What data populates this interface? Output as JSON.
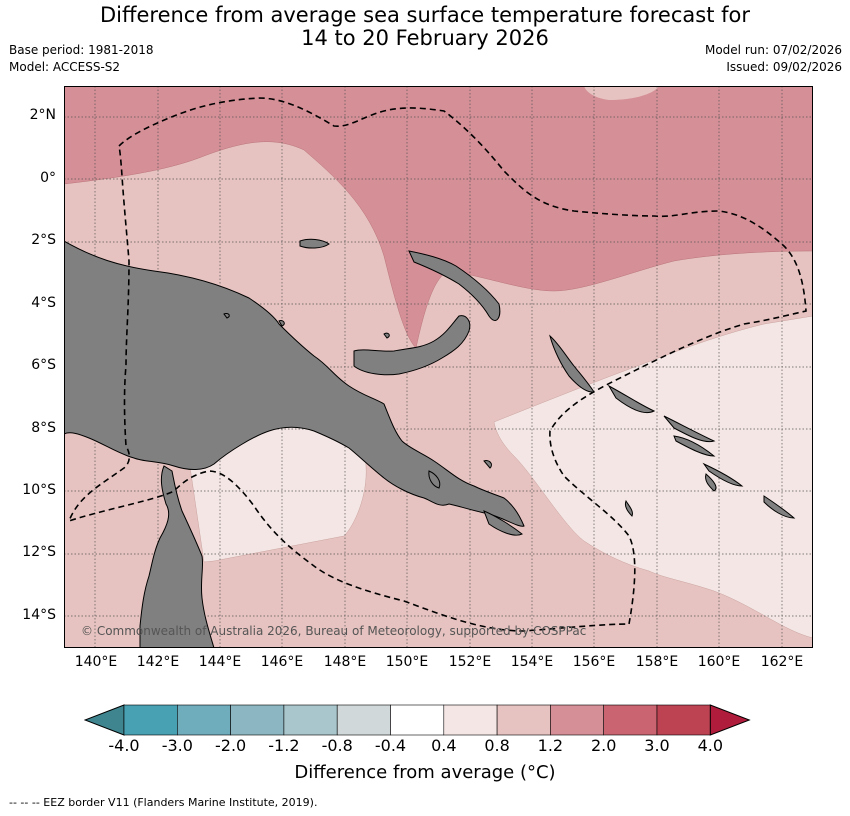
{
  "title": {
    "line1": "Difference from average sea surface temperature forecast for",
    "line2": "14 to 20 February 2026"
  },
  "meta": {
    "base_period": "Base period: 1981-2018",
    "model": "Model: ACCESS-S2",
    "model_run": "Model run: 07/02/2026",
    "issued": "Issued: 09/02/2026"
  },
  "map": {
    "lon_labels": [
      "140°E",
      "142°E",
      "144°E",
      "146°E",
      "148°E",
      "150°E",
      "152°E",
      "154°E",
      "156°E",
      "158°E",
      "160°E",
      "162°E"
    ],
    "lat_labels": [
      "2°N",
      "0°",
      "2°S",
      "4°S",
      "6°S",
      "8°S",
      "10°S",
      "12°S",
      "14°S"
    ],
    "copyright": "© Commonwealth of Australia 2026, Bureau of Meteorology, supported by COSPPac"
  },
  "colorbar": {
    "ticks": [
      "-4.0",
      "-3.0",
      "-2.0",
      "-1.2",
      "-0.8",
      "-0.4",
      "0.4",
      "0.8",
      "1.2",
      "2.0",
      "3.0",
      "4.0"
    ],
    "colors": [
      "#3f8590",
      "#48a1b3",
      "#6fadbd",
      "#8cb6c1",
      "#a8c6cb",
      "#d0d8da",
      "#ffffff",
      "#f4e6e4",
      "#e6c3c0",
      "#d58f96",
      "#c96470",
      "#bd4352",
      "#b01c3c"
    ],
    "label": "Difference from average (°C)"
  },
  "footnote": "-- -- -- EEZ border V11 (Flanders Marine Institute, 2019).",
  "colors": {
    "land": "#808080",
    "anom_0_4_0_8": "#f4e6e4",
    "anom_0_8_1_2": "#e6c3c0",
    "anom_1_2_2_0": "#d58f96"
  }
}
